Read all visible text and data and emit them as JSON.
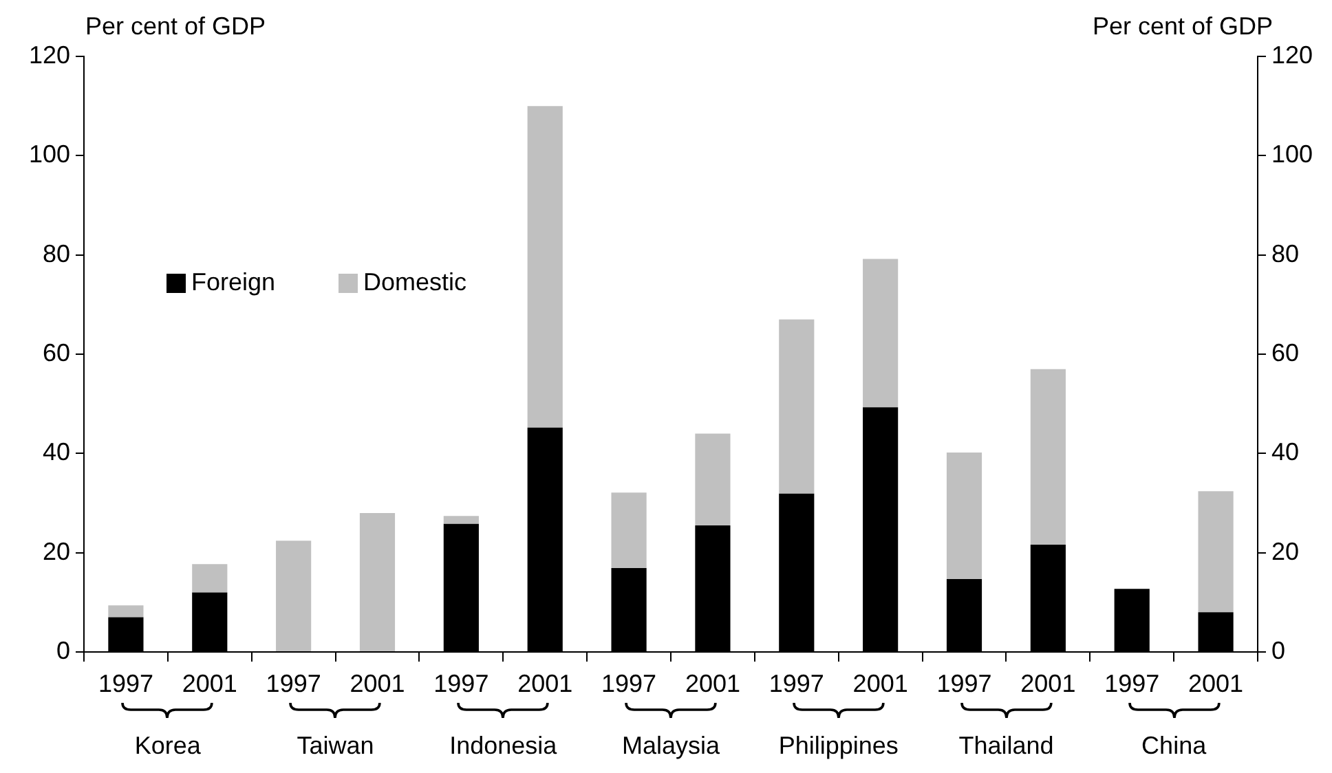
{
  "chart_data": {
    "type": "bar",
    "ylabel": "Per cent of GDP",
    "y2label": "Per cent of GDP",
    "categories": [
      "1997",
      "2001",
      "1997",
      "2001",
      "1997",
      "2001",
      "1997",
      "2001",
      "1997",
      "2001",
      "1997",
      "2001",
      "1997",
      "2001"
    ],
    "series": [
      {
        "name": "Foreign",
        "color": "#000000",
        "values": [
          7,
          12,
          0,
          0,
          25.8,
          45.2,
          16.9,
          25.5,
          31.9,
          49.3,
          14.7,
          21.6,
          12.7,
          8
        ]
      },
      {
        "name": "Domestic",
        "color": "#c0c0c0",
        "values": [
          2.4,
          5.7,
          22.4,
          28,
          1.6,
          64.8,
          15.2,
          18.5,
          35.1,
          29.9,
          25.5,
          35.4,
          0,
          24.4
        ]
      }
    ],
    "stacked": true,
    "ylim": [
      0,
      120
    ],
    "yticks": [
      0,
      20,
      40,
      60,
      80,
      100,
      120
    ],
    "y2lim": [
      0,
      120
    ],
    "y2ticks": [
      0,
      20,
      40,
      60,
      80,
      100,
      120
    ],
    "grid": false,
    "legend": "top left",
    "annotations": [
      "Korea",
      "Taiwan",
      "Indonesia",
      "Malaysia",
      "Philippines",
      "Thailand",
      "China"
    ]
  }
}
